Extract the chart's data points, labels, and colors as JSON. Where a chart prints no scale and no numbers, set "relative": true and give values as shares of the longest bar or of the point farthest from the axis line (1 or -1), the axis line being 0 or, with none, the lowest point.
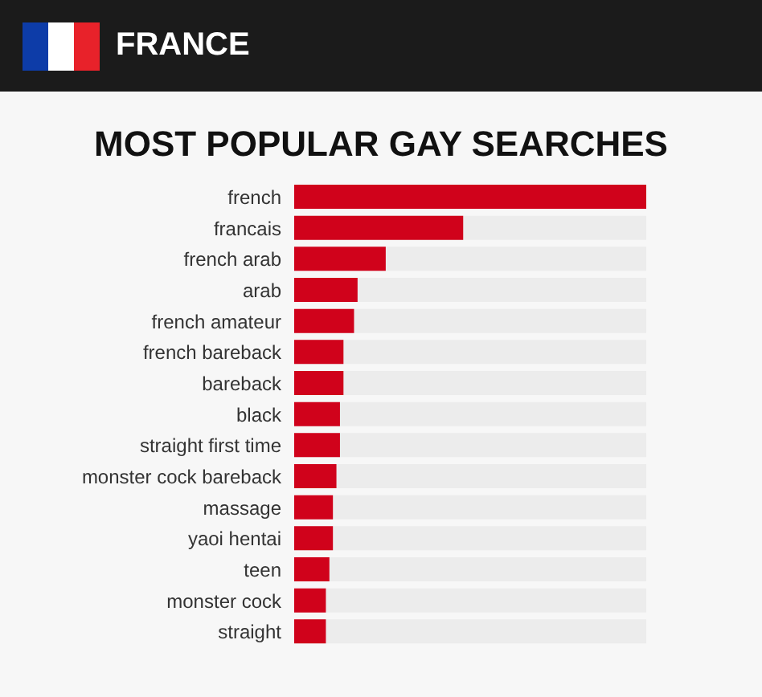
{
  "chart_data": {
    "type": "bar",
    "orientation": "horizontal",
    "relative": true,
    "title": "MOST POPULAR GAY SEARCHES",
    "subtitle": "FRANCE",
    "categories": [
      "french",
      "francais",
      "french arab",
      "arab",
      "french amateur",
      "french bareback",
      "bareback",
      "black",
      "straight first time",
      "monster cock bareback",
      "massage",
      "yaoi hentai",
      "teen",
      "monster cock",
      "straight"
    ],
    "values": [
      1,
      0.48,
      0.26,
      0.18,
      0.17,
      0.14,
      0.14,
      0.13,
      0.13,
      0.12,
      0.11,
      0.11,
      0.1,
      0.09,
      0.09
    ],
    "color": "#d0021b",
    "grid": false,
    "legend": false
  }
}
